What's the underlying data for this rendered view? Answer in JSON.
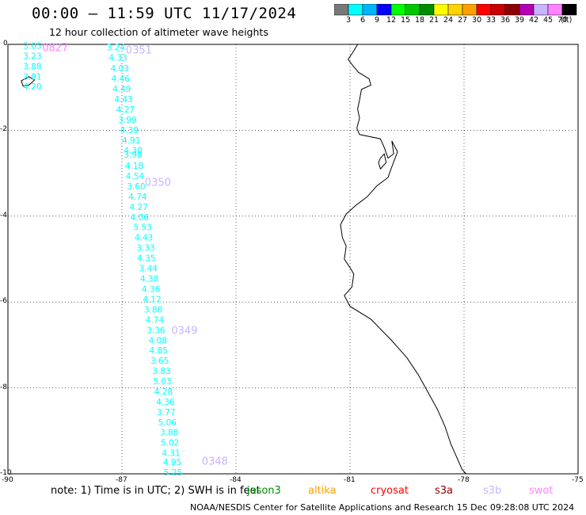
{
  "title": "00:00 — 11:59 UTC 11/17/2024",
  "subtitle": "12 hour collection of altimeter wave heights",
  "note": "note:  1) Time is in UTC;  2) SWH is in feet",
  "credit": "NOAA/NESDIS Center for Satellite Applications and Research    15 Dec 09:28:08 UTC 2024",
  "map": {
    "lon_range": [
      -90,
      -75
    ],
    "lat_range": [
      -10,
      0
    ],
    "x_ticks": [
      "-90",
      "-87",
      "-84",
      "-81",
      "-78",
      "-75"
    ],
    "y_ticks": [
      "0",
      "-2",
      "-4",
      "-6",
      "-8",
      "-10"
    ],
    "grid": "dotted",
    "coastline_color": "#000000"
  },
  "legend": {
    "labels": [
      "3",
      "6",
      "9",
      "12",
      "15",
      "18",
      "21",
      "24",
      "27",
      "30",
      "33",
      "36",
      "39",
      "42",
      "45",
      "70"
    ],
    "unit": "(ft)",
    "colors": [
      "#787878",
      "#00ffff",
      "#00b4ff",
      "#0000ff",
      "#00ff00",
      "#00c800",
      "#008c00",
      "#ffff00",
      "#ffd200",
      "#ffa000",
      "#ff0000",
      "#c80000",
      "#8c0000",
      "#b400b4",
      "#c8b4ff",
      "#ff82ff",
      "#000000"
    ]
  },
  "satellites": [
    {
      "name": "jason3",
      "color": "#008c00"
    },
    {
      "name": "cryosat",
      "color": "#ff0000"
    },
    {
      "name": "altika",
      "color": "#ffa000"
    },
    {
      "name": "s3a",
      "color": "#8c0000"
    },
    {
      "name": "s3b",
      "color": "#c8b4ff"
    },
    {
      "name": "swot",
      "color": "#ff82ff"
    }
  ],
  "track_labels": [
    {
      "text": "0827",
      "lon": -89.1,
      "lat": -0.06,
      "color": "#ff82ff"
    },
    {
      "text": "0351",
      "lon": -86.9,
      "lat": -0.12,
      "color": "#c8b4ff"
    },
    {
      "text": "0350",
      "lon": -86.4,
      "lat": -3.2,
      "color": "#c8b4ff"
    },
    {
      "text": "0349",
      "lon": -85.7,
      "lat": -6.65,
      "color": "#c8b4ff"
    },
    {
      "text": "0348",
      "lon": -84.9,
      "lat": -9.7,
      "color": "#c8b4ff"
    }
  ],
  "swot_track": {
    "color": "#00ffff",
    "points": [
      {
        "v": "3.05",
        "lon": -89.6,
        "lat": -0.03
      },
      {
        "v": "3.23",
        "lon": -89.6,
        "lat": -0.27
      },
      {
        "v": "3.88",
        "lon": -89.6,
        "lat": -0.51
      },
      {
        "v": "3.91",
        "lon": -89.6,
        "lat": -0.75
      },
      {
        "v": "4.20",
        "lon": -89.6,
        "lat": -0.98
      }
    ]
  },
  "s3b_track": {
    "color": "#00ffff",
    "points": [
      {
        "v": "3.24",
        "lon": -87.4,
        "lat": -0.06
      },
      {
        "v": "4.33",
        "lon": -87.35,
        "lat": -0.3
      },
      {
        "v": "4.03",
        "lon": -87.3,
        "lat": -0.55
      },
      {
        "v": "4.46",
        "lon": -87.28,
        "lat": -0.79
      },
      {
        "v": "4.49",
        "lon": -87.25,
        "lat": -1.03
      },
      {
        "v": "4.43",
        "lon": -87.2,
        "lat": -1.27
      },
      {
        "v": "4.27",
        "lon": -87.15,
        "lat": -1.51
      },
      {
        "v": "3.99",
        "lon": -87.1,
        "lat": -1.75
      },
      {
        "v": "4.39",
        "lon": -87.05,
        "lat": -1.99
      },
      {
        "v": "4.91",
        "lon": -87.0,
        "lat": -2.23
      },
      {
        "v": "4.30",
        "lon": -86.95,
        "lat": -2.46
      },
      {
        "v": "3.98",
        "lon": -86.95,
        "lat": -2.56
      },
      {
        "v": "4.18",
        "lon": -86.92,
        "lat": -2.82
      },
      {
        "v": "4.54",
        "lon": -86.9,
        "lat": -3.06
      },
      {
        "v": "3.60",
        "lon": -86.87,
        "lat": -3.3
      },
      {
        "v": "4.74",
        "lon": -86.83,
        "lat": -3.54
      },
      {
        "v": "4.27",
        "lon": -86.8,
        "lat": -3.78
      },
      {
        "v": "4.06",
        "lon": -86.78,
        "lat": -4.02
      },
      {
        "v": "5.53",
        "lon": -86.7,
        "lat": -4.25
      },
      {
        "v": "4.43",
        "lon": -86.67,
        "lat": -4.49
      },
      {
        "v": "3.33",
        "lon": -86.62,
        "lat": -4.73
      },
      {
        "v": "4.35",
        "lon": -86.6,
        "lat": -4.97
      },
      {
        "v": "3.44",
        "lon": -86.55,
        "lat": -5.21
      },
      {
        "v": "4.38",
        "lon": -86.52,
        "lat": -5.45
      },
      {
        "v": "4.36",
        "lon": -86.48,
        "lat": -5.69
      },
      {
        "v": "4.12",
        "lon": -86.45,
        "lat": -5.93
      },
      {
        "v": "3.86",
        "lon": -86.42,
        "lat": -6.17
      },
      {
        "v": "4.74",
        "lon": -86.38,
        "lat": -6.41
      },
      {
        "v": "3.36",
        "lon": -86.35,
        "lat": -6.65
      },
      {
        "v": "4.08",
        "lon": -86.3,
        "lat": -6.89
      },
      {
        "v": "4.85",
        "lon": -86.28,
        "lat": -7.12
      },
      {
        "v": "3.65",
        "lon": -86.25,
        "lat": -7.36
      },
      {
        "v": "3.83",
        "lon": -86.2,
        "lat": -7.6
      },
      {
        "v": "5.03",
        "lon": -86.18,
        "lat": -7.84
      },
      {
        "v": "4.28",
        "lon": -86.15,
        "lat": -8.08
      },
      {
        "v": "4.36",
        "lon": -86.1,
        "lat": -8.32
      },
      {
        "v": "3.77",
        "lon": -86.08,
        "lat": -8.56
      },
      {
        "v": "5.06",
        "lon": -86.05,
        "lat": -8.8
      },
      {
        "v": "3.88",
        "lon": -86.0,
        "lat": -9.03
      },
      {
        "v": "5.02",
        "lon": -85.98,
        "lat": -9.27
      },
      {
        "v": "4.31",
        "lon": -85.95,
        "lat": -9.51
      },
      {
        "v": "4.95",
        "lon": -85.92,
        "lat": -9.72
      },
      {
        "v": "5.25",
        "lon": -85.9,
        "lat": -9.96
      }
    ]
  },
  "coastline": [
    [
      -80.8,
      -0.0
    ],
    [
      -80.9,
      -0.15
    ],
    [
      -81.05,
      -0.35
    ],
    [
      -80.92,
      -0.5
    ],
    [
      -80.78,
      -0.65
    ],
    [
      -80.5,
      -0.8
    ],
    [
      -80.45,
      -0.95
    ],
    [
      -80.7,
      -1.05
    ],
    [
      -80.75,
      -1.3
    ],
    [
      -80.8,
      -1.5
    ],
    [
      -80.75,
      -1.72
    ],
    [
      -80.82,
      -1.95
    ],
    [
      -80.75,
      -2.1
    ],
    [
      -80.2,
      -2.2
    ],
    [
      -80.1,
      -2.4
    ],
    [
      -80.0,
      -2.65
    ],
    [
      -79.85,
      -2.55
    ],
    [
      -79.9,
      -2.25
    ],
    [
      -79.75,
      -2.5
    ],
    [
      -79.92,
      -2.9
    ],
    [
      -80.0,
      -3.1
    ],
    [
      -80.3,
      -3.3
    ],
    [
      -80.55,
      -3.55
    ],
    [
      -80.85,
      -3.75
    ],
    [
      -81.1,
      -3.95
    ],
    [
      -81.25,
      -4.2
    ],
    [
      -81.2,
      -4.5
    ],
    [
      -81.1,
      -4.7
    ],
    [
      -81.15,
      -5.0
    ],
    [
      -81.0,
      -5.2
    ],
    [
      -80.9,
      -5.35
    ],
    [
      -80.95,
      -5.65
    ],
    [
      -81.15,
      -5.85
    ],
    [
      -81.0,
      -6.1
    ],
    [
      -80.45,
      -6.4
    ],
    [
      -79.9,
      -6.9
    ],
    [
      -79.5,
      -7.3
    ],
    [
      -79.2,
      -7.7
    ],
    [
      -78.95,
      -8.1
    ],
    [
      -78.7,
      -8.5
    ],
    [
      -78.5,
      -8.9
    ],
    [
      -78.35,
      -9.3
    ],
    [
      -78.2,
      -9.6
    ],
    [
      -78.05,
      -9.9
    ],
    [
      -77.95,
      -10.0
    ]
  ],
  "islands": [
    [
      [
        -89.65,
        -0.85
      ],
      [
        -89.45,
        -0.75
      ],
      [
        -89.3,
        -0.83
      ],
      [
        -89.45,
        -0.95
      ],
      [
        -89.6,
        -0.97
      ],
      [
        -89.65,
        -0.85
      ]
    ],
    [
      [
        -80.2,
        -2.65
      ],
      [
        -80.1,
        -2.55
      ],
      [
        -80.05,
        -2.75
      ],
      [
        -80.2,
        -2.9
      ],
      [
        -80.25,
        -2.75
      ],
      [
        -80.2,
        -2.65
      ]
    ]
  ]
}
